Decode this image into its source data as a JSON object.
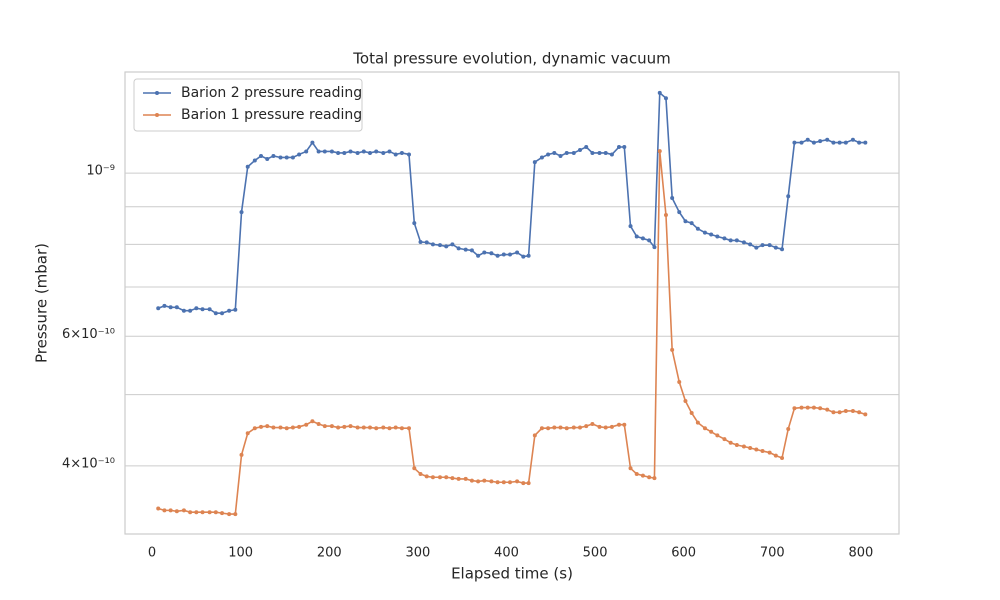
{
  "chart_data": {
    "type": "line",
    "title": "Total pressure evolution, dynamic vacuum",
    "xlabel": "Elapsed time (s)",
    "ylabel": "Pressure (mbar)",
    "x": [
      7,
      14,
      21,
      28,
      36,
      43,
      50,
      57,
      65,
      72,
      79,
      87,
      94,
      101,
      108,
      116,
      123,
      130,
      137,
      145,
      152,
      159,
      166,
      174,
      181,
      188,
      195,
      203,
      210,
      217,
      224,
      232,
      239,
      246,
      253,
      261,
      268,
      275,
      282,
      290,
      296,
      303,
      310,
      317,
      325,
      332,
      339,
      346,
      354,
      361,
      368,
      375,
      383,
      390,
      397,
      404,
      412,
      419,
      425,
      432,
      440,
      447,
      454,
      461,
      468,
      476,
      483,
      490,
      497,
      505,
      512,
      519,
      527,
      533,
      540,
      547,
      554,
      561,
      567,
      573,
      580,
      587,
      595,
      602,
      609,
      616,
      624,
      631,
      638,
      646,
      653,
      660,
      668,
      675,
      682,
      689,
      697,
      704,
      711,
      718,
      725,
      733,
      740,
      747,
      754,
      762,
      769,
      776,
      783,
      791,
      798,
      805
    ],
    "series": [
      {
        "name": "Barion 2 pressure reading",
        "color": "#4c72b0",
        "values": [
          6.55e-10,
          6.6e-10,
          6.57e-10,
          6.57e-10,
          6.5e-10,
          6.5e-10,
          6.55e-10,
          6.53e-10,
          6.53e-10,
          6.45e-10,
          6.45e-10,
          6.5e-10,
          6.52e-10,
          8.85e-10,
          1.02e-09,
          1.04e-09,
          1.055e-09,
          1.045e-09,
          1.055e-09,
          1.05e-09,
          1.05e-09,
          1.05e-09,
          1.06e-09,
          1.07e-09,
          1.1e-09,
          1.07e-09,
          1.07e-09,
          1.07e-09,
          1.065e-09,
          1.065e-09,
          1.07e-09,
          1.065e-09,
          1.07e-09,
          1.065e-09,
          1.07e-09,
          1.065e-09,
          1.07e-09,
          1.06e-09,
          1.065e-09,
          1.06e-09,
          8.55e-10,
          8.06e-10,
          8.05e-10,
          8e-10,
          7.98e-10,
          7.95e-10,
          8e-10,
          7.9e-10,
          7.87e-10,
          7.85e-10,
          7.72e-10,
          7.8e-10,
          7.78e-10,
          7.72e-10,
          7.75e-10,
          7.75e-10,
          7.8e-10,
          7.7e-10,
          7.72e-10,
          1.035e-09,
          1.05e-09,
          1.06e-09,
          1.065e-09,
          1.055e-09,
          1.065e-09,
          1.065e-09,
          1.075e-09,
          1.085e-09,
          1.065e-09,
          1.065e-09,
          1.065e-09,
          1.06e-09,
          1.085e-09,
          1.085e-09,
          8.47e-10,
          8.2e-10,
          8.15e-10,
          8.1e-10,
          7.93e-10,
          1.285e-09,
          1.264e-09,
          9.25e-10,
          8.85e-10,
          8.6e-10,
          8.55e-10,
          8.4e-10,
          8.3e-10,
          8.25e-10,
          8.2e-10,
          8.15e-10,
          8.1e-10,
          8.1e-10,
          8.05e-10,
          8e-10,
          7.92e-10,
          7.98e-10,
          7.98e-10,
          7.92e-10,
          7.88e-10,
          9.3e-10,
          1.1e-09,
          1.1e-09,
          1.11e-09,
          1.1e-09,
          1.105e-09,
          1.11e-09,
          1.1e-09,
          1.1e-09,
          1.1e-09,
          1.11e-09,
          1.1e-09,
          1.1e-09
        ]
      },
      {
        "name": "Barion 1 pressure reading",
        "color": "#dd8452",
        "values": [
          3.5e-10,
          3.48e-10,
          3.48e-10,
          3.47e-10,
          3.48e-10,
          3.46e-10,
          3.46e-10,
          3.46e-10,
          3.46e-10,
          3.46e-10,
          3.45e-10,
          3.44e-10,
          3.44e-10,
          4.14e-10,
          4.43e-10,
          4.5e-10,
          4.52e-10,
          4.53e-10,
          4.51e-10,
          4.51e-10,
          4.5e-10,
          4.51e-10,
          4.52e-10,
          4.55e-10,
          4.6e-10,
          4.56e-10,
          4.53e-10,
          4.53e-10,
          4.51e-10,
          4.52e-10,
          4.53e-10,
          4.51e-10,
          4.51e-10,
          4.51e-10,
          4.5e-10,
          4.51e-10,
          4.5e-10,
          4.51e-10,
          4.5e-10,
          4.5e-10,
          3.97e-10,
          3.9e-10,
          3.87e-10,
          3.86e-10,
          3.86e-10,
          3.86e-10,
          3.85e-10,
          3.84e-10,
          3.84e-10,
          3.82e-10,
          3.81e-10,
          3.82e-10,
          3.81e-10,
          3.8e-10,
          3.8e-10,
          3.8e-10,
          3.81e-10,
          3.79e-10,
          3.79e-10,
          4.4e-10,
          4.5e-10,
          4.5e-10,
          4.51e-10,
          4.51e-10,
          4.5e-10,
          4.51e-10,
          4.51e-10,
          4.53e-10,
          4.56e-10,
          4.52e-10,
          4.51e-10,
          4.52e-10,
          4.55e-10,
          4.55e-10,
          3.97e-10,
          3.9e-10,
          3.88e-10,
          3.86e-10,
          3.85e-10,
          1.071e-09,
          8.77e-10,
          5.75e-10,
          5.2e-10,
          4.9e-10,
          4.72e-10,
          4.58e-10,
          4.5e-10,
          4.45e-10,
          4.4e-10,
          4.35e-10,
          4.3e-10,
          4.27e-10,
          4.25e-10,
          4.23e-10,
          4.21e-10,
          4.19e-10,
          4.17e-10,
          4.13e-10,
          4.1e-10,
          4.49e-10,
          4.79e-10,
          4.8e-10,
          4.8e-10,
          4.8e-10,
          4.79e-10,
          4.77e-10,
          4.73e-10,
          4.73e-10,
          4.75e-10,
          4.75e-10,
          4.73e-10,
          4.7e-10
        ]
      }
    ],
    "xlim": [
      -30.5,
      843
    ],
    "xticks": [
      0,
      100,
      200,
      300,
      400,
      500,
      600,
      700,
      800
    ],
    "ylim": [
      3.232e-10,
      1.372e-09
    ],
    "yscale": "log",
    "yticks": [
      {
        "value": 4e-10,
        "label": "4×10⁻¹⁰"
      },
      {
        "value": 6e-10,
        "label": "6×10⁻¹⁰"
      },
      {
        "value": 1e-09,
        "label": "10⁻⁹"
      }
    ],
    "yminorticks": [
      5e-10,
      7e-10,
      8e-10,
      9e-10
    ],
    "grid": "y",
    "legend": "upper-left"
  }
}
